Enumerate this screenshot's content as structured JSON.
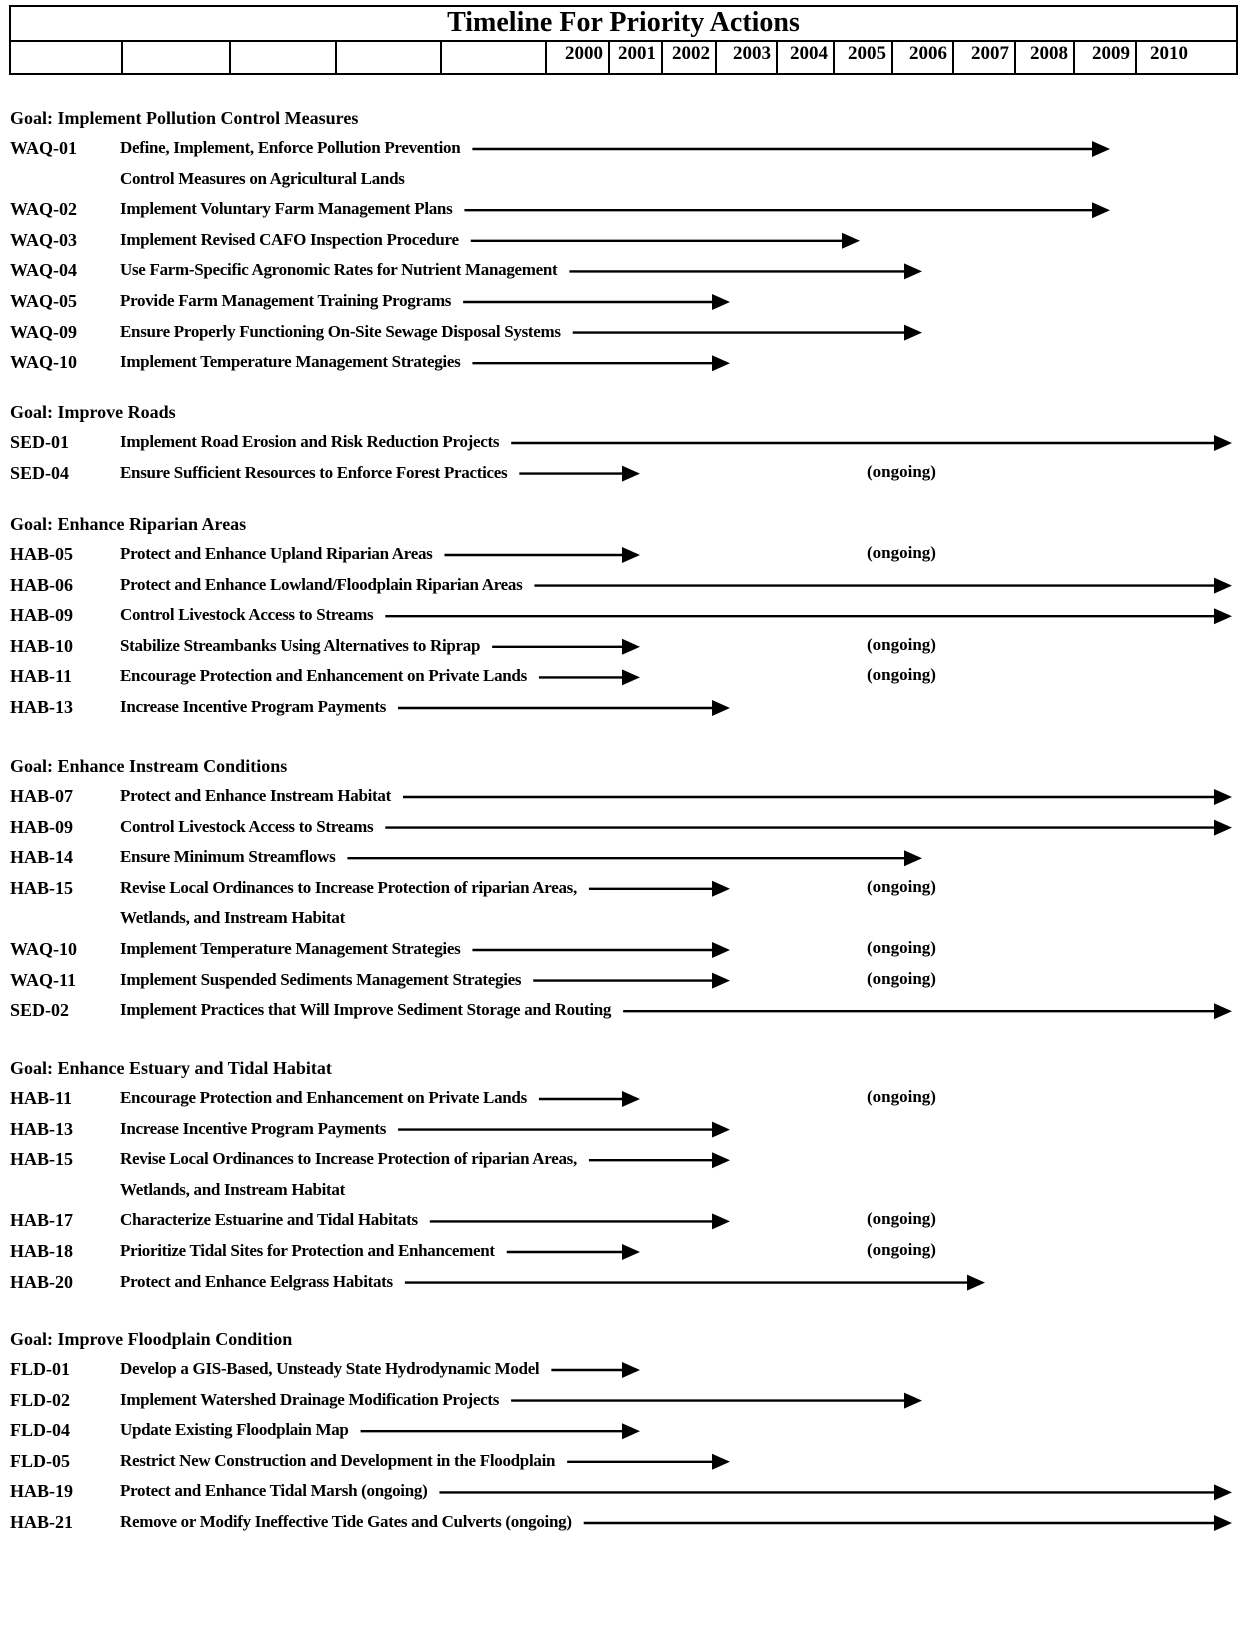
{
  "header": {
    "title": "Timeline For Priority Actions",
    "years": [
      "2000",
      "2001",
      "2002",
      "2003",
      "2004",
      "2005",
      "2006",
      "2007",
      "2008",
      "2009",
      "2010"
    ]
  },
  "ongoing_label": "(ongoing)",
  "goals": [
    {
      "title": "Goal: Implement Pollution Control Measures",
      "items": [
        {
          "code": "WAQ-01",
          "desc": "Define, Implement, Enforce Pollution Prevention",
          "desc2": "Control Measures on Agricultural Lands",
          "end": "2008",
          "ongoing": false
        },
        {
          "code": "WAQ-02",
          "desc": "Implement Voluntary Farm Management Plans",
          "end": "2008",
          "ongoing": false
        },
        {
          "code": "WAQ-03",
          "desc": "Implement Revised CAFO Inspection Procedure",
          "end": "2004",
          "ongoing": false
        },
        {
          "code": "WAQ-04",
          "desc": "Use Farm-Specific Agronomic Rates for Nutrient Management",
          "end": "2005",
          "ongoing": false
        },
        {
          "code": "WAQ-05",
          "desc": "Provide Farm Management Training Programs",
          "end": "2002",
          "ongoing": false
        },
        {
          "code": "WAQ-09",
          "desc": "Ensure Properly Functioning On-Site Sewage Disposal Systems",
          "end": "2005",
          "ongoing": false
        },
        {
          "code": "WAQ-10",
          "desc": "Implement Temperature Management Strategies",
          "end": "2002",
          "ongoing": false
        }
      ]
    },
    {
      "title": "Goal: Improve Roads",
      "items": [
        {
          "code": "SED-01",
          "desc": "Implement Road Erosion and Risk Reduction Projects",
          "end": "2010",
          "ongoing": false
        },
        {
          "code": "SED-04",
          "desc": "Ensure Sufficient Resources to Enforce Forest Practices",
          "end": "2001",
          "ongoing": true
        }
      ]
    },
    {
      "title": "Goal: Enhance Riparian Areas",
      "items": [
        {
          "code": "HAB-05",
          "desc": "Protect and Enhance Upland Riparian Areas",
          "end": "2001",
          "ongoing": true
        },
        {
          "code": "HAB-06",
          "desc": "Protect and Enhance Lowland/Floodplain Riparian Areas",
          "end": "2010",
          "ongoing": false
        },
        {
          "code": "HAB-09",
          "desc": "Control Livestock Access to Streams",
          "end": "2010",
          "ongoing": false
        },
        {
          "code": "HAB-10",
          "desc": "Stabilize Streambanks Using Alternatives to Riprap",
          "end": "2001",
          "ongoing": true
        },
        {
          "code": "HAB-11",
          "desc": "Encourage Protection and Enhancement on Private Lands",
          "end": "2001",
          "ongoing": true
        },
        {
          "code": "HAB-13",
          "desc": "Increase Incentive Program Payments",
          "end": "2002",
          "ongoing": false
        }
      ]
    },
    {
      "title": "Goal: Enhance Instream Conditions",
      "items": [
        {
          "code": "HAB-07",
          "desc": "Protect and Enhance Instream Habitat",
          "end": "2010",
          "ongoing": false
        },
        {
          "code": "HAB-09",
          "desc": "Control Livestock Access to Streams",
          "end": "2010",
          "ongoing": false
        },
        {
          "code": "HAB-14",
          "desc": "Ensure Minimum Streamflows",
          "end": "2005",
          "ongoing": false
        },
        {
          "code": "HAB-15",
          "desc": "Revise Local Ordinances to Increase Protection of riparian Areas,",
          "desc2": "Wetlands, and Instream Habitat",
          "end": "2002",
          "ongoing": true
        },
        {
          "code": "WAQ-10",
          "desc": "Implement Temperature Management Strategies",
          "end": "2002",
          "ongoing": true
        },
        {
          "code": "WAQ-11",
          "desc": "Implement Suspended Sediments Management Strategies",
          "end": "2002",
          "ongoing": true
        },
        {
          "code": "SED-02",
          "desc": "Implement Practices that Will Improve Sediment Storage and Routing",
          "end": "2010",
          "ongoing": false
        }
      ]
    },
    {
      "title": "Goal: Enhance Estuary and Tidal Habitat",
      "items": [
        {
          "code": "HAB-11",
          "desc": "Encourage Protection and Enhancement on Private Lands",
          "end": "2001",
          "ongoing": true
        },
        {
          "code": "HAB-13",
          "desc": "Increase Incentive Program Payments",
          "end": "2002",
          "ongoing": false
        },
        {
          "code": "HAB-15",
          "desc": "Revise Local Ordinances to Increase Protection of riparian Areas,",
          "desc2": "Wetlands, and Instream Habitat",
          "end": "2002",
          "ongoing": false
        },
        {
          "code": "HAB-17",
          "desc": "Characterize Estuarine and Tidal Habitats",
          "end": "2002",
          "ongoing": true
        },
        {
          "code": "HAB-18",
          "desc": "Prioritize Tidal Sites for Protection and Enhancement",
          "end": "2001",
          "ongoing": true
        },
        {
          "code": "HAB-20",
          "desc": "Protect and Enhance Eelgrass Habitats",
          "end": "2006",
          "ongoing": false
        }
      ]
    },
    {
      "title": "Goal: Improve Floodplain Condition",
      "items": [
        {
          "code": "FLD-01",
          "desc": "Develop a GIS-Based, Unsteady State Hydrodynamic Model",
          "end": "2001",
          "ongoing": false
        },
        {
          "code": "FLD-02",
          "desc": "Implement Watershed Drainage Modification Projects",
          "end": "2005",
          "ongoing": false
        },
        {
          "code": "FLD-04",
          "desc": "Update Existing Floodplain Map",
          "end": "2001",
          "ongoing": false
        },
        {
          "code": "FLD-05",
          "desc": "Restrict New Construction and Development in the Floodplain",
          "end": "2002",
          "ongoing": false
        },
        {
          "code": "HAB-19",
          "desc": "Protect and Enhance Tidal Marsh (ongoing)",
          "end": "2010",
          "ongoing": false
        },
        {
          "code": "HAB-21",
          "desc": "Remove or Modify Ineffective Tide Gates and Culverts (ongoing)",
          "end": "2010",
          "ongoing": false
        }
      ]
    }
  ]
}
